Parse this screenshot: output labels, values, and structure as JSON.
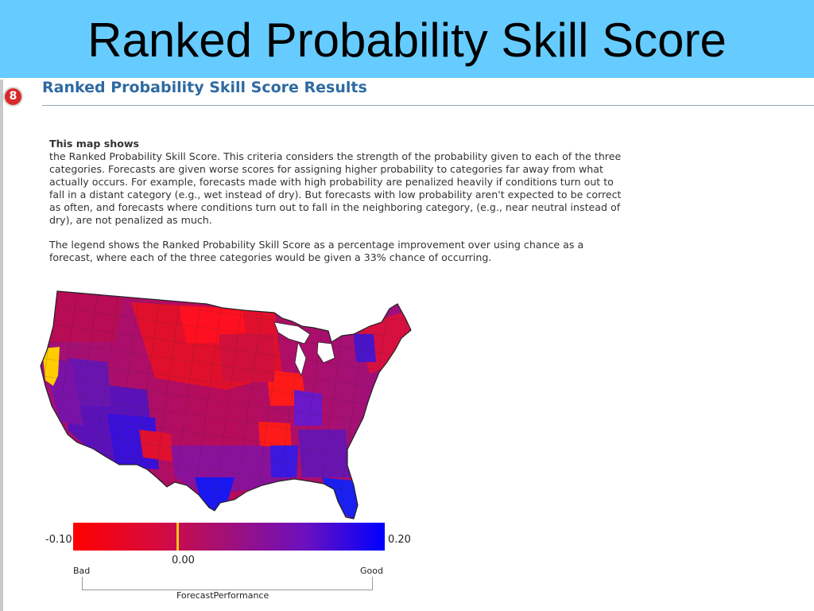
{
  "slide": {
    "title": "Ranked Probability Skill Score"
  },
  "section": {
    "step_number": "8",
    "heading": "Ranked Probability Skill Score Results"
  },
  "description": {
    "lead": "This map shows",
    "para1": "the Ranked Probability Skill Score. This criteria considers the strength of the probability given to each of the three categories. Forecasts are given worse scores for assigning higher probability to categories far away from what actually occurs. For example, forecasts made with high probability are penalized heavily if conditions turn out to fall in a distant category (e.g., wet instead of dry). But forecasts with low probability aren't expected to be correct as often, and forecasts where conditions turn out to fall in the neighboring category, (e.g., near neutral instead of dry), are not penalized as much.",
    "para2": "The legend shows the Ranked Probability Skill Score as a percentage improvement over using chance as a forecast, where each of the three categories would be given a 33% chance of occurring."
  },
  "legend": {
    "min_label": "-0.10",
    "max_label": "0.20",
    "zero_label": "0.00",
    "min_value": -0.1,
    "max_value": 0.2,
    "marker_value": 0.0,
    "bad_label": "Bad",
    "good_label": "Good",
    "caption": "ForecastPerformance"
  },
  "colors": {
    "title_bar": "#66ccff",
    "heading": "#2e6aa3",
    "badge": "#d62a2a",
    "scale_low": "#ff0000",
    "scale_mid": "#a0107a",
    "scale_high": "#0000ff",
    "zero_marker": "#f5c518",
    "highlight_region": "#ffcc00"
  }
}
